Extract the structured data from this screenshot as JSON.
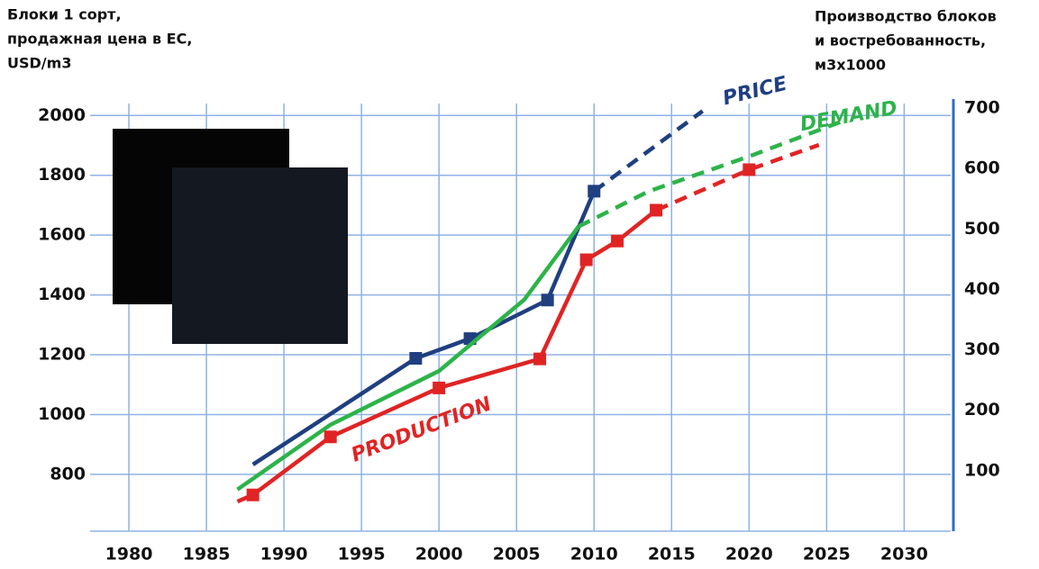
{
  "chart_data": {
    "type": "line",
    "y_title": [
      "Блоки 1 сорт,",
      "продажная цена в ЕС,",
      "USD/m3"
    ],
    "y2_title": [
      "Производство блоков",
      "и востребованность,",
      "м3х1000"
    ],
    "xlim": [
      1977.5,
      2033
    ],
    "xticks": [
      1980,
      1985,
      1990,
      1995,
      2000,
      2005,
      2010,
      2015,
      2020,
      2025,
      2030
    ],
    "ylim": [
      610,
      2025
    ],
    "yticks": [
      800,
      1000,
      1200,
      1400,
      1600,
      1800,
      2000
    ],
    "y2lim": [
      0,
      700
    ],
    "y2ticks": [
      100,
      200,
      300,
      400,
      500,
      600,
      700
    ],
    "grid": true,
    "series": [
      {
        "name": "PRICE",
        "color": "#1f3f80",
        "axis": "y",
        "markers": true,
        "dash_from_x": 2010,
        "x": [
          1988,
          1998.5,
          2002,
          2007,
          2010,
          2017
        ],
        "values": [
          833,
          1188,
          1254,
          1383,
          1747,
          2015
        ]
      },
      {
        "name": "DEMAND",
        "color": "#2db34a",
        "axis": "y2",
        "markers": false,
        "dash_from_x": 2009,
        "x": [
          1987,
          1993,
          2000,
          2005.5,
          2009,
          2013.5,
          2020,
          2026
        ],
        "values": [
          69,
          176,
          265,
          383,
          504,
          562,
          620,
          678
        ]
      },
      {
        "name": "PRODUCTION",
        "color": "#e02424",
        "axis": "y2",
        "markers": true,
        "dash_from_x": 2014,
        "x": [
          1987,
          1988,
          1993,
          2000,
          2006.5,
          2009.5,
          2011.5,
          2014,
          2020,
          2024.5
        ],
        "values": [
          49,
          60,
          156,
          237,
          285,
          449,
          480,
          531,
          598,
          639
        ]
      }
    ]
  }
}
